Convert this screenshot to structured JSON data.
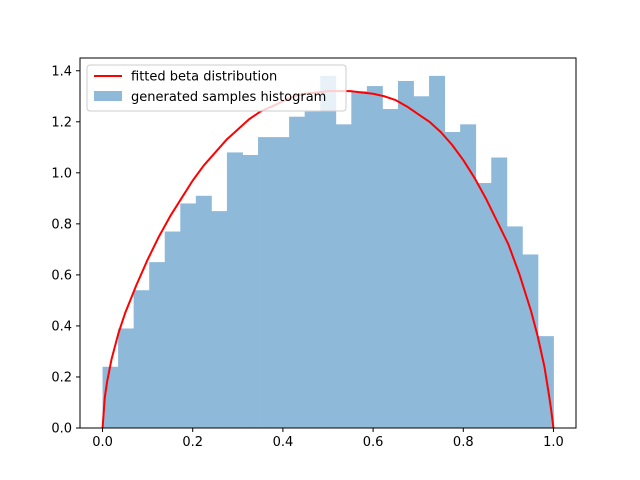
{
  "chart_data": {
    "type": "bar",
    "title": "",
    "xlabel": "",
    "ylabel": "",
    "xlim": [
      -0.05,
      1.05
    ],
    "ylim": [
      0,
      1.45
    ],
    "x_ticks": [
      0.0,
      0.2,
      0.4,
      0.6,
      0.8,
      1.0
    ],
    "x_tick_labels": [
      "0.0",
      "0.2",
      "0.4",
      "0.6",
      "0.8",
      "1.0"
    ],
    "y_ticks": [
      0.0,
      0.2,
      0.4,
      0.6,
      0.8,
      1.0,
      1.2,
      1.4
    ],
    "y_tick_labels": [
      "0.0",
      "0.2",
      "0.4",
      "0.6",
      "0.8",
      "1.0",
      "1.2",
      "1.4"
    ],
    "grid": false,
    "legend": "upper-left",
    "series": [
      {
        "name": "generated samples histogram",
        "kind": "histogram",
        "color": "#8fb9d9",
        "bin_range": [
          0.0,
          1.0
        ],
        "values": [
          0.24,
          0.39,
          0.54,
          0.65,
          0.77,
          0.88,
          0.91,
          0.85,
          1.08,
          1.07,
          1.14,
          1.14,
          1.22,
          1.24,
          1.38,
          1.19,
          1.32,
          1.34,
          1.25,
          1.36,
          1.3,
          1.38,
          1.16,
          1.19,
          0.96,
          1.06,
          0.79,
          0.68,
          0.36
        ]
      },
      {
        "name": "fitted beta distribution",
        "kind": "line",
        "color": "#ff0000",
        "x": [
          0.0,
          0.005,
          0.01,
          0.02,
          0.035,
          0.05,
          0.075,
          0.1,
          0.125,
          0.15,
          0.175,
          0.2,
          0.225,
          0.25,
          0.275,
          0.3,
          0.325,
          0.35,
          0.375,
          0.4,
          0.425,
          0.45,
          0.475,
          0.5,
          0.525,
          0.55,
          0.575,
          0.6,
          0.625,
          0.65,
          0.675,
          0.7,
          0.725,
          0.75,
          0.775,
          0.8,
          0.825,
          0.85,
          0.875,
          0.9,
          0.925,
          0.95,
          0.965,
          0.98,
          0.99,
          0.995,
          1.0
        ],
        "y": [
          0.0,
          0.12,
          0.18,
          0.27,
          0.37,
          0.45,
          0.56,
          0.66,
          0.75,
          0.83,
          0.9,
          0.97,
          1.03,
          1.08,
          1.13,
          1.17,
          1.21,
          1.24,
          1.26,
          1.28,
          1.3,
          1.31,
          1.315,
          1.32,
          1.32,
          1.32,
          1.315,
          1.31,
          1.3,
          1.285,
          1.26,
          1.23,
          1.2,
          1.16,
          1.11,
          1.05,
          0.98,
          0.9,
          0.81,
          0.72,
          0.6,
          0.46,
          0.36,
          0.24,
          0.13,
          0.07,
          0.0
        ]
      }
    ]
  }
}
